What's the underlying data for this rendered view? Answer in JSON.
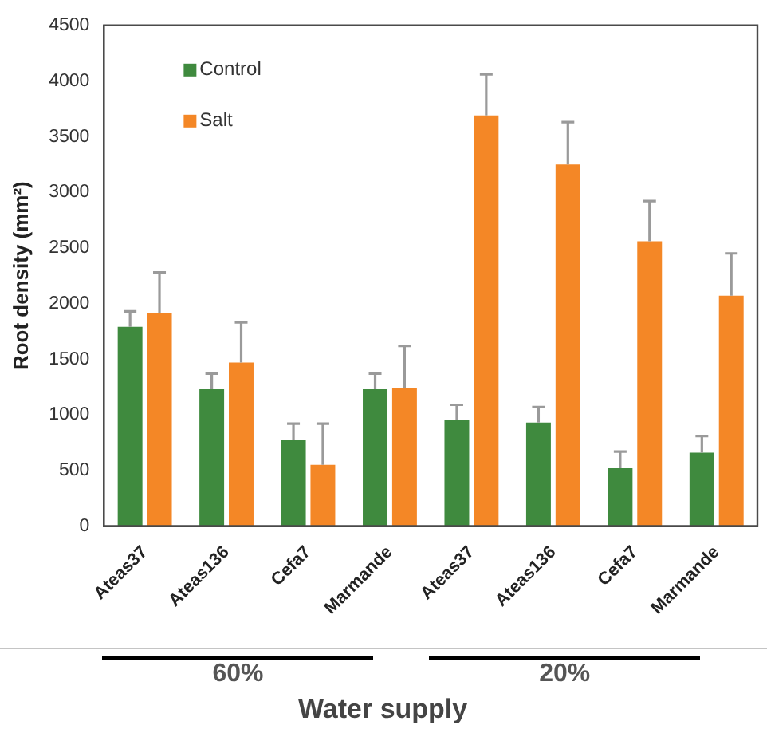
{
  "chart_data": {
    "type": "bar",
    "ylabel": "Root density (mm²)",
    "xlabel": "Water supply",
    "annotations": [
      "60%",
      "20%"
    ],
    "categories": [
      "Ateas37",
      "Ateas136",
      "Cefa7",
      "Marmande",
      "Ateas37",
      "Ateas136",
      "Cefa7",
      "Marmande"
    ],
    "series": [
      {
        "name": "Control",
        "color": "#3f8a3e",
        "values": [
          1790,
          1230,
          770,
          1230,
          950,
          930,
          520,
          660
        ],
        "errors": [
          [
            1790,
            1930
          ],
          [
            1230,
            1370
          ],
          [
            770,
            920
          ],
          [
            1230,
            1370
          ],
          [
            950,
            1090
          ],
          [
            930,
            1070
          ],
          [
            520,
            670
          ],
          [
            660,
            810
          ]
        ]
      },
      {
        "name": "Salt",
        "color": "#f48726",
        "values": [
          1910,
          1470,
          550,
          1240,
          3690,
          3250,
          2560,
          2070
        ],
        "errors": [
          [
            1910,
            2280
          ],
          [
            1470,
            1830
          ],
          [
            550,
            920
          ],
          [
            1240,
            1620
          ],
          [
            3690,
            4060
          ],
          [
            3250,
            3630
          ],
          [
            2560,
            2920
          ],
          [
            2070,
            2450
          ]
        ]
      }
    ],
    "ylim": [
      0,
      4500
    ],
    "yticks": [
      0,
      500,
      1000,
      1500,
      2000,
      2500,
      3000,
      3500,
      4000,
      4500
    ],
    "legend": "top left"
  }
}
